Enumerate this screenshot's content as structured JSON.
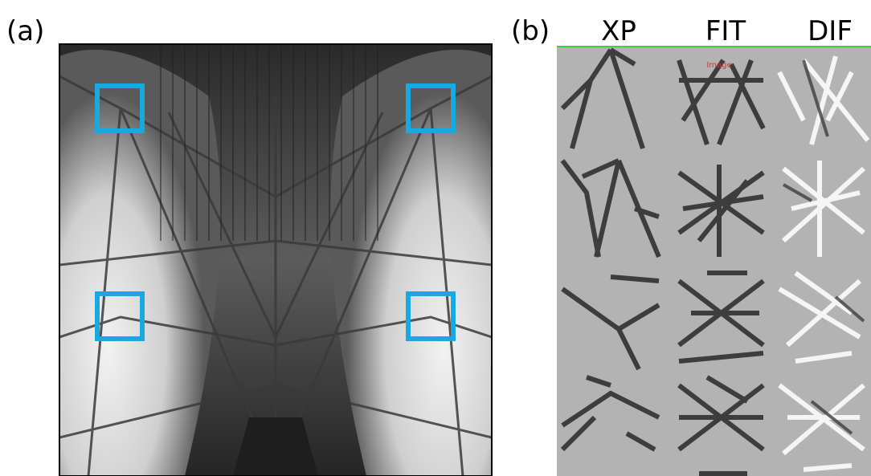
{
  "panel_a": {
    "label": "(a)"
  },
  "panel_b": {
    "label": "(b)",
    "columns": [
      "XP",
      "FIT",
      "DIF"
    ],
    "overlay_text": "Image"
  }
}
